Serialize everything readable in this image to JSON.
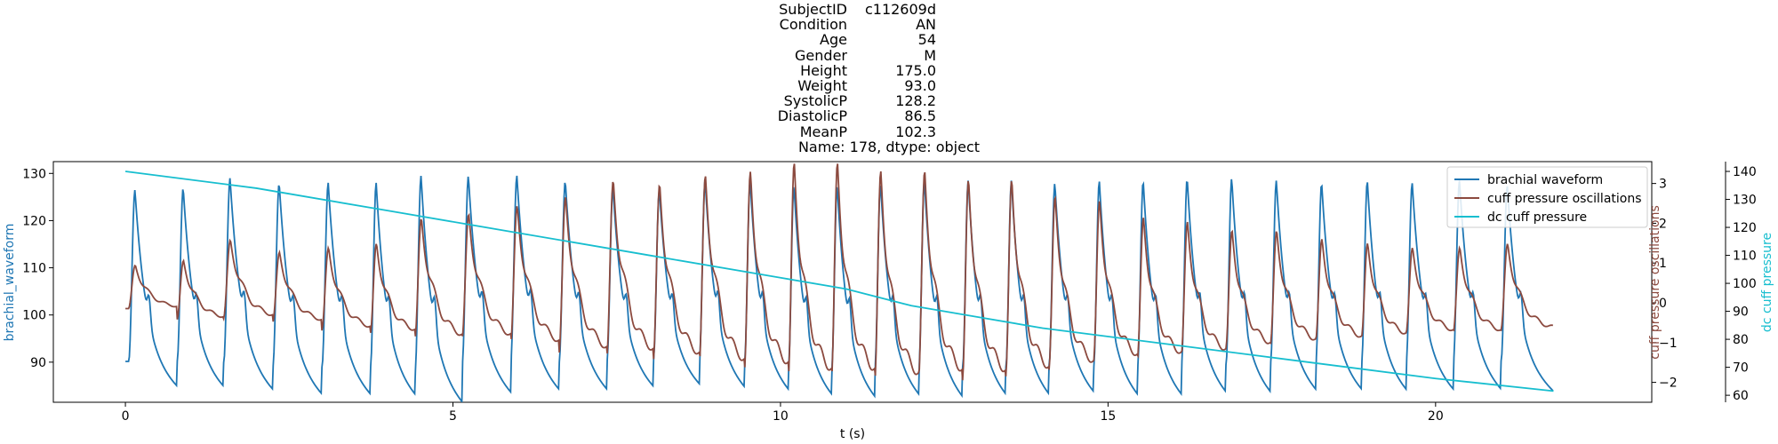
{
  "title": {
    "rows": [
      {
        "key": "SubjectID",
        "value": "c112609d"
      },
      {
        "key": "Condition",
        "value": "AN"
      },
      {
        "key": "Age",
        "value": "54"
      },
      {
        "key": "Gender",
        "value": "M"
      },
      {
        "key": "Height",
        "value": "175.0"
      },
      {
        "key": "Weight",
        "value": "93.0"
      },
      {
        "key": "SystolicP",
        "value": "128.2"
      },
      {
        "key": "DiastolicP",
        "value": "86.5"
      },
      {
        "key": "MeanP",
        "value": "102.3"
      }
    ],
    "footer": "Name: 178, dtype: object"
  },
  "chart_data": {
    "type": "line",
    "xlabel": "t (s)",
    "xlim": [
      -1.1,
      23.3
    ],
    "x_ticks": [
      0,
      5,
      10,
      15,
      20
    ],
    "grid": false,
    "legend_position": "top-right",
    "axes": {
      "left": {
        "label": "brachial_waveform",
        "color": "#1f77b4",
        "ylim": [
          81.5,
          132.5
        ],
        "ticks": [
          90,
          100,
          110,
          120,
          130
        ]
      },
      "right": {
        "label": "cuff pressure oscillations",
        "color": "#8c4a3f",
        "ylim": [
          -2.5,
          3.55
        ],
        "ticks": [
          -2,
          -1,
          0,
          1,
          2,
          3
        ]
      },
      "right_outer": {
        "label": "dc cuff pressure",
        "color": "#17becf",
        "ylim": [
          57.5,
          143.5
        ],
        "ticks": [
          60,
          70,
          80,
          90,
          100,
          110,
          120,
          130,
          140
        ]
      }
    },
    "series": [
      {
        "name": "brachial waveform",
        "axis": "left",
        "color": "#1f77b4",
        "waveform": {
          "t_start": 0.0,
          "t_end": 21.8,
          "beat_times": [
            0.05,
            0.79,
            1.5,
            2.25,
            3.0,
            3.74,
            4.42,
            5.14,
            5.88,
            6.62,
            7.35,
            8.06,
            8.76,
            9.45,
            10.12,
            10.78,
            11.44,
            12.11,
            12.78,
            13.44,
            14.1,
            14.78,
            15.45,
            16.12,
            16.8,
            17.48,
            18.17,
            18.87,
            19.55,
            20.27,
            21.0
          ],
          "peaks": [
            126.5,
            127,
            129,
            128,
            128,
            128,
            129.5,
            129.5,
            129.5,
            128.5,
            127,
            126.5,
            128.5,
            128.5,
            127.5,
            127.5,
            128,
            128.5,
            128.5,
            128.5,
            128,
            128.5,
            128.5,
            129,
            129,
            128.5,
            128,
            128.5,
            128,
            128.5,
            127.5
          ],
          "troughs": [
            87,
            87,
            86.5,
            85.5,
            85.5,
            85.5,
            84,
            86,
            86.5,
            86.5,
            87,
            87.5,
            87,
            86.5,
            85.5,
            85,
            85.5,
            85,
            85.5,
            85.5,
            86,
            85.5,
            85.5,
            86,
            86,
            86.5,
            86.5,
            86.5,
            86.5,
            86.5,
            87
          ]
        }
      },
      {
        "name": "cuff pressure oscillations",
        "axis": "right",
        "color": "#8c4a3f",
        "waveform": {
          "t_start": 0.0,
          "t_end": 21.8,
          "beat_times": [
            0.05,
            0.79,
            1.5,
            2.25,
            3.0,
            3.74,
            4.42,
            5.14,
            5.88,
            6.62,
            7.35,
            8.06,
            8.76,
            9.45,
            10.12,
            10.78,
            11.44,
            12.11,
            12.78,
            13.44,
            14.1,
            14.78,
            15.45,
            16.12,
            16.8,
            17.48,
            18.17,
            18.87,
            19.55,
            20.27,
            21.0
          ],
          "peaks": [
            0.9,
            1.0,
            1.5,
            1.2,
            1.3,
            1.4,
            2.0,
            2.1,
            2.3,
            2.5,
            2.9,
            2.8,
            3.0,
            3.1,
            3.3,
            3.3,
            3.1,
            3.1,
            2.9,
            2.9,
            2.5,
            2.4,
            2.0,
            1.9,
            1.7,
            1.7,
            1.5,
            1.4,
            1.3,
            1.3,
            1.4
          ],
          "troughs": [
            -0.2,
            -0.5,
            -0.5,
            -0.6,
            -0.8,
            -0.9,
            -1.1,
            -1.1,
            -1.3,
            -1.5,
            -1.6,
            -1.7,
            -1.9,
            -2.0,
            -2.2,
            -2.2,
            -2.3,
            -2.2,
            -2.2,
            -2.1,
            -1.9,
            -1.7,
            -1.6,
            -1.5,
            -1.3,
            -1.2,
            -1.1,
            -1.0,
            -0.9,
            -0.9,
            -0.8
          ]
        }
      },
      {
        "name": "dc cuff pressure",
        "axis": "right_outer",
        "color": "#17becf",
        "x": [
          0,
          2,
          4,
          6,
          8,
          10,
          11,
          12,
          13,
          14,
          16,
          18,
          20,
          21.8
        ],
        "y": [
          140,
          134,
          126,
          118,
          110,
          102,
          98,
          92,
          88,
          84,
          78,
          72,
          66,
          61.5
        ]
      }
    ]
  }
}
